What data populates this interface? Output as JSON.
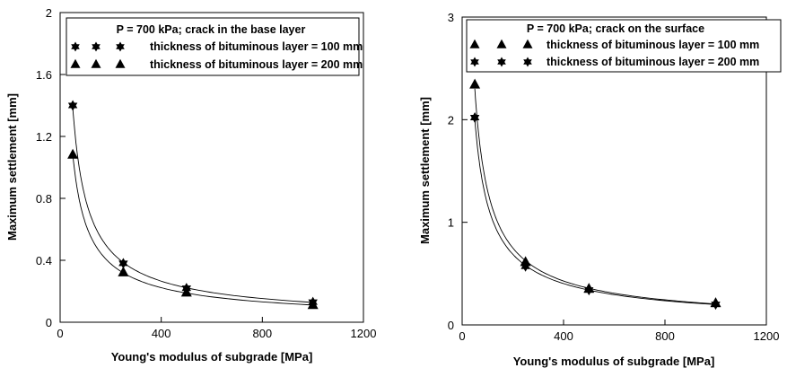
{
  "chart_data": [
    {
      "type": "scatter",
      "title": "",
      "xlabel": "Young's modulus of subgrade [MPa]",
      "ylabel": "Maximum settlement [mm]",
      "xlim": [
        0,
        1200
      ],
      "ylim": [
        0,
        2
      ],
      "xticks": [
        "0",
        "400",
        "800",
        "1200"
      ],
      "yticks": [
        "0",
        "0.4",
        "0.8",
        "1.2",
        "1.6",
        "2"
      ],
      "grid": false,
      "legend_position": "top-right",
      "legend_title": "P = 700 kPa; crack in the base layer",
      "series": [
        {
          "name": "thickness of bituminous layer = 100 mm",
          "marker": "star",
          "x": [
            50,
            250,
            500,
            1000
          ],
          "y": [
            1.4,
            0.38,
            0.22,
            0.13
          ]
        },
        {
          "name": "thickness of bituminous layer = 200 mm",
          "marker": "triangle",
          "x": [
            50,
            250,
            500,
            1000
          ],
          "y": [
            1.08,
            0.32,
            0.19,
            0.11
          ]
        }
      ]
    },
    {
      "type": "scatter",
      "title": "",
      "xlabel": "Young's modulus of subgrade [MPa]",
      "ylabel": "Maximum settlement [mm]",
      "xlim": [
        0,
        1200
      ],
      "ylim": [
        0,
        3
      ],
      "xticks": [
        "0",
        "400",
        "800",
        "1200"
      ],
      "yticks": [
        "0",
        "1",
        "2",
        "3"
      ],
      "grid": false,
      "legend_position": "top-right",
      "legend_title": "P = 700 kPa; crack on the surface",
      "series": [
        {
          "name": "thickness of bituminous layer = 100 mm",
          "marker": "triangle",
          "x": [
            50,
            250,
            500,
            1000
          ],
          "y": [
            2.34,
            0.61,
            0.35,
            0.21
          ]
        },
        {
          "name": "thickness of bituminous layer = 200 mm",
          "marker": "star",
          "x": [
            50,
            250,
            500,
            1000
          ],
          "y": [
            2.02,
            0.57,
            0.34,
            0.2
          ]
        }
      ]
    }
  ]
}
